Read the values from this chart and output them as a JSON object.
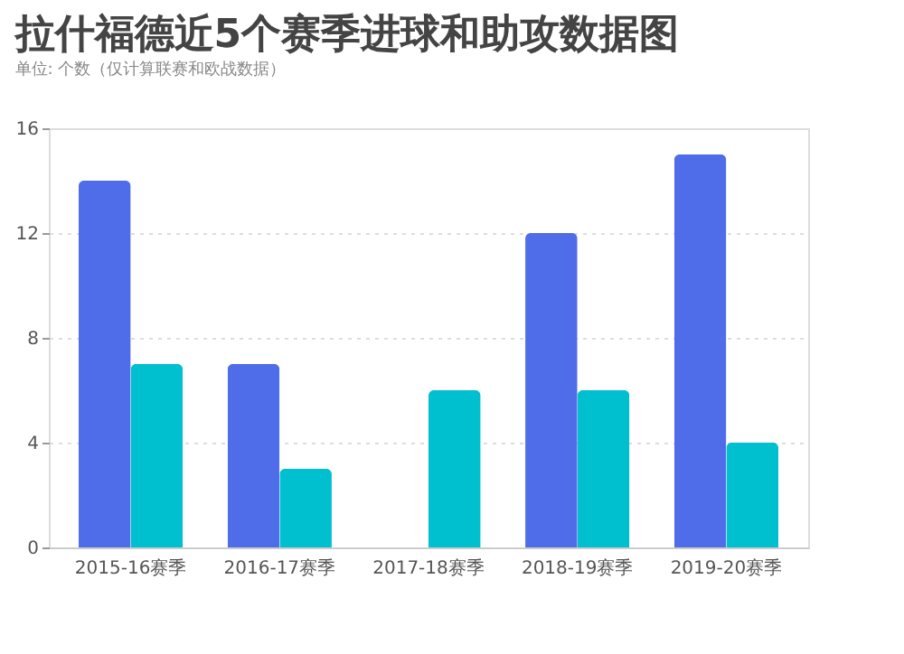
{
  "chart_data": {
    "type": "bar",
    "title": "拉什福德近5个赛季进球和助攻数据图",
    "subtitle": "单位: 个数（仅计算联赛和欧战数据）",
    "categories": [
      "2015-16赛季",
      "2016-17赛季",
      "2017-18赛季",
      "2018-19赛季",
      "2019-20赛季"
    ],
    "series": [
      {
        "color": "#4f6de8",
        "values": [
          14,
          7,
          null,
          12,
          15
        ]
      },
      {
        "color": "#00c0d0",
        "values": [
          7,
          3,
          6,
          6,
          4
        ]
      }
    ],
    "ylim": [
      0,
      16
    ],
    "yticks": [
      0,
      4,
      8,
      12,
      16
    ],
    "grid": "y",
    "legend": false
  }
}
